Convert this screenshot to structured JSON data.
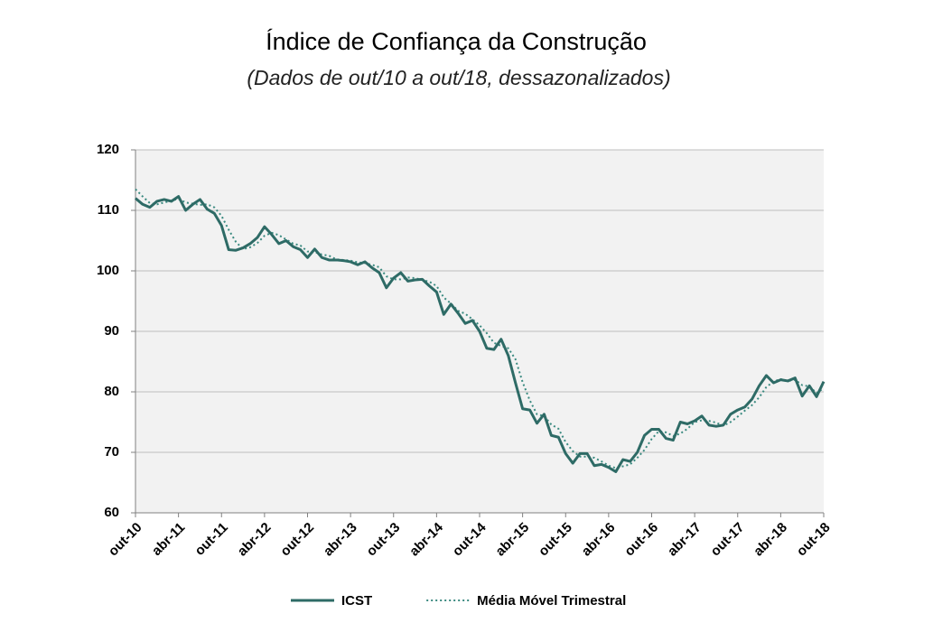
{
  "chart_data": {
    "type": "line",
    "title": "Índice de Confiança da Construção",
    "subtitle": "(Dados de out/10 a out/18, dessazonalizados)",
    "categories": [
      "out-10",
      null,
      null,
      null,
      null,
      null,
      "abr-11",
      null,
      null,
      null,
      null,
      null,
      "out-11",
      null,
      null,
      null,
      null,
      null,
      "abr-12",
      null,
      null,
      null,
      null,
      null,
      "out-12",
      null,
      null,
      null,
      null,
      null,
      "abr-13",
      null,
      null,
      null,
      null,
      null,
      "out-13",
      null,
      null,
      null,
      null,
      null,
      "abr-14",
      null,
      null,
      null,
      null,
      null,
      "out-14",
      null,
      null,
      null,
      null,
      null,
      "abr-15",
      null,
      null,
      null,
      null,
      null,
      "out-15",
      null,
      null,
      null,
      null,
      null,
      "abr-16",
      null,
      null,
      null,
      null,
      null,
      "out-16",
      null,
      null,
      null,
      null,
      null,
      "abr-17",
      null,
      null,
      null,
      null,
      null,
      "out-17",
      null,
      null,
      null,
      null,
      null,
      "abr-18",
      null,
      null,
      null,
      null,
      null,
      "out-18"
    ],
    "series": [
      {
        "name": "ICST",
        "color": "#2e6b66",
        "dash": "solid",
        "values": [
          112,
          111,
          110.5,
          111.5,
          111.8,
          111.5,
          112.3,
          110,
          111,
          111.8,
          110.2,
          109.5,
          107.5,
          103.5,
          103.4,
          103.8,
          104.5,
          105.5,
          107.3,
          106,
          104.5,
          105,
          104,
          103.5,
          102.2,
          103.6,
          102.2,
          101.8,
          101.8,
          101.7,
          101.5,
          101,
          101.5,
          100.5,
          99.7,
          97.2,
          98.8,
          99.7,
          98.3,
          98.5,
          98.6,
          97.5,
          96.5,
          92.8,
          94.5,
          93,
          91.3,
          91.8,
          90,
          87.2,
          87,
          88.7,
          86,
          81.5,
          77.2,
          77,
          74.8,
          76.3,
          72.8,
          72.5,
          69.8,
          68.2,
          69.8,
          69.8,
          67.8,
          68,
          67.5,
          66.8,
          68.8,
          68.5,
          70,
          72.8,
          73.8,
          73.8,
          72.3,
          72,
          75,
          74.7,
          75.2,
          76,
          74.5,
          74.3,
          74.5,
          76.3,
          77,
          77.5,
          78.8,
          81,
          82.7,
          81.5,
          82,
          81.8,
          82.3,
          79.3,
          81,
          79.2,
          81.7
        ]
      },
      {
        "name": "Média Móvel Trimestral",
        "color": "#3a8a80",
        "dash": "dotted",
        "values": [
          113.5,
          112.3,
          111.2,
          111,
          111.3,
          111.6,
          111.9,
          111.3,
          111.1,
          110.9,
          111,
          110.5,
          109.1,
          106.8,
          104.8,
          103.6,
          103.9,
          104.6,
          105.8,
          106.3,
          105.9,
          105.2,
          104.5,
          104.2,
          103.2,
          103.1,
          102.7,
          102.5,
          101.9,
          101.8,
          101.7,
          101.4,
          101.3,
          101,
          100.6,
          99.1,
          98.6,
          98.6,
          98.9,
          98.8,
          98.5,
          98.2,
          97.5,
          95.6,
          94.6,
          93.4,
          92.9,
          92,
          91,
          89.7,
          88.1,
          87.6,
          87.2,
          85.4,
          81.6,
          78.6,
          76.3,
          76,
          74.6,
          73.9,
          71.7,
          70.2,
          69.3,
          69.3,
          69.1,
          68.5,
          67.8,
          67.4,
          67.7,
          68,
          69.1,
          70.4,
          72.2,
          73.5,
          73.3,
          72.7,
          73.1,
          73.9,
          75,
          75.3,
          75.2,
          74.9,
          74.4,
          75,
          75.9,
          76.9,
          77.8,
          79.1,
          80.8,
          81.7,
          82.1,
          81.8,
          82,
          81.1,
          80.9,
          79.8,
          80.6
        ]
      }
    ],
    "ylim": [
      60,
      120
    ],
    "yticks": [
      60,
      70,
      80,
      90,
      100,
      110,
      120
    ],
    "grid": true
  }
}
